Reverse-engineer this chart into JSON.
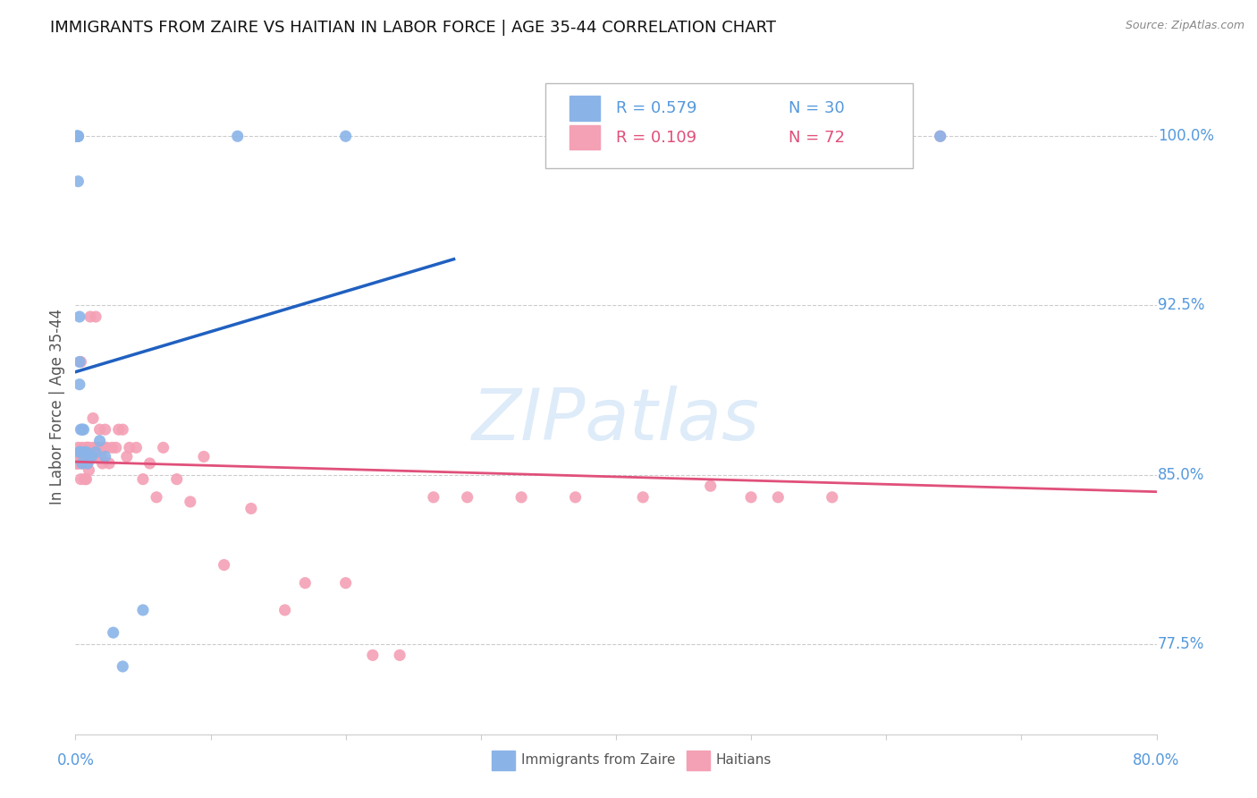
{
  "title": "IMMIGRANTS FROM ZAIRE VS HAITIAN IN LABOR FORCE | AGE 35-44 CORRELATION CHART",
  "source": "Source: ZipAtlas.com",
  "ylabel": "In Labor Force | Age 35-44",
  "xlim": [
    0.0,
    0.8
  ],
  "ylim": [
    0.735,
    1.025
  ],
  "right_yticks": [
    0.775,
    0.85,
    0.925,
    1.0
  ],
  "right_yticklabels": [
    "77.5%",
    "85.0%",
    "92.5%",
    "100.0%"
  ],
  "zaire_color": "#8ab4e8",
  "haitian_color": "#f4a0b5",
  "zaire_line_color": "#2060c0",
  "haitian_line_color": "#e0507a",
  "legend_r_zaire": "R = 0.579",
  "legend_n_zaire": "N = 30",
  "legend_r_haitian": "R = 0.109",
  "legend_n_haitian": "N = 72",
  "watermark": "ZIPatlas",
  "zaire_x": [
    0.001,
    0.001,
    0.001,
    0.002,
    0.002,
    0.002,
    0.002,
    0.003,
    0.003,
    0.003,
    0.003,
    0.004,
    0.004,
    0.005,
    0.005,
    0.006,
    0.007,
    0.008,
    0.009,
    0.01,
    0.012,
    0.015,
    0.018,
    0.022,
    0.028,
    0.035,
    0.05,
    0.12,
    0.2,
    0.64
  ],
  "zaire_y": [
    1.0,
    1.0,
    1.0,
    0.98,
    1.0,
    1.0,
    1.0,
    0.92,
    0.9,
    0.89,
    0.86,
    0.87,
    0.86,
    0.855,
    0.87,
    0.87,
    0.86,
    0.86,
    0.855,
    0.858,
    0.858,
    0.86,
    0.865,
    0.858,
    0.78,
    0.765,
    0.79,
    1.0,
    1.0,
    1.0
  ],
  "haitian_x": [
    0.001,
    0.001,
    0.002,
    0.002,
    0.002,
    0.003,
    0.003,
    0.004,
    0.004,
    0.004,
    0.005,
    0.005,
    0.005,
    0.006,
    0.006,
    0.007,
    0.007,
    0.008,
    0.008,
    0.008,
    0.009,
    0.009,
    0.01,
    0.01,
    0.011,
    0.011,
    0.012,
    0.013,
    0.013,
    0.014,
    0.015,
    0.015,
    0.016,
    0.017,
    0.018,
    0.019,
    0.02,
    0.021,
    0.022,
    0.023,
    0.025,
    0.027,
    0.03,
    0.032,
    0.035,
    0.038,
    0.04,
    0.045,
    0.05,
    0.055,
    0.06,
    0.065,
    0.075,
    0.085,
    0.095,
    0.11,
    0.13,
    0.155,
    0.17,
    0.2,
    0.22,
    0.24,
    0.265,
    0.29,
    0.33,
    0.37,
    0.42,
    0.47,
    0.5,
    0.52,
    0.56,
    0.64
  ],
  "haitian_y": [
    0.855,
    0.855,
    0.855,
    0.858,
    0.862,
    0.855,
    0.858,
    0.848,
    0.858,
    0.9,
    0.855,
    0.858,
    0.862,
    0.855,
    0.858,
    0.848,
    0.858,
    0.848,
    0.855,
    0.862,
    0.855,
    0.862,
    0.852,
    0.862,
    0.92,
    0.858,
    0.86,
    0.862,
    0.875,
    0.858,
    0.858,
    0.92,
    0.862,
    0.862,
    0.87,
    0.858,
    0.855,
    0.862,
    0.87,
    0.862,
    0.855,
    0.862,
    0.862,
    0.87,
    0.87,
    0.858,
    0.862,
    0.862,
    0.848,
    0.855,
    0.84,
    0.862,
    0.848,
    0.838,
    0.858,
    0.81,
    0.835,
    0.79,
    0.802,
    0.802,
    0.77,
    0.77,
    0.84,
    0.84,
    0.84,
    0.84,
    0.84,
    0.845,
    0.84,
    0.84,
    0.84,
    1.0
  ]
}
